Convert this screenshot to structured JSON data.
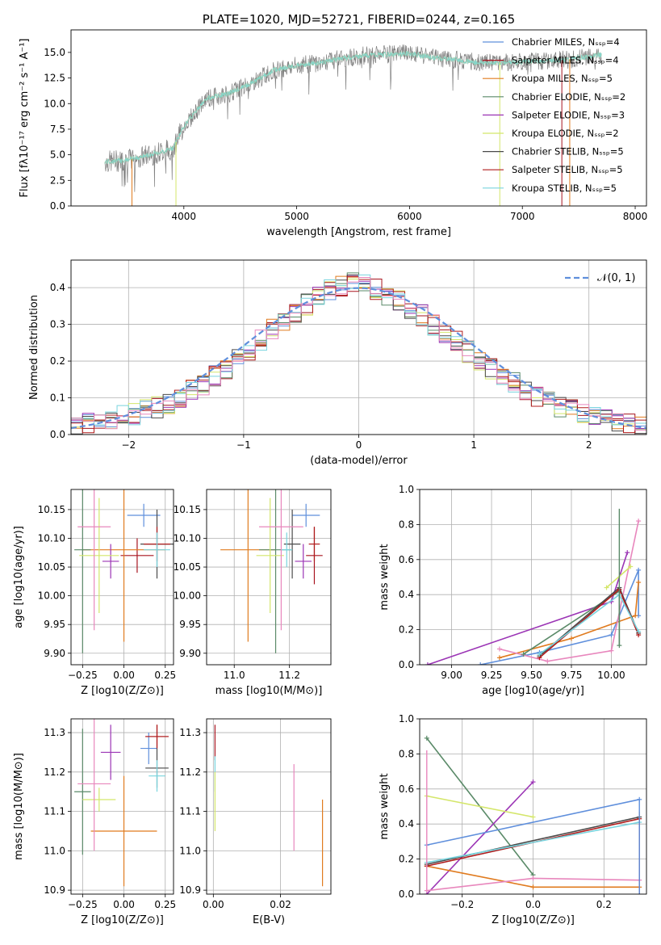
{
  "colors": {
    "chabrier_miles": "#5f8fdc",
    "salpeter_miles": "#a8141f",
    "kroupa_miles": "#e07b1f",
    "chabrier_elodie": "#5a8a68",
    "salpeter_elodie": "#9b34b5",
    "kroupa_elodie": "#d4e66a",
    "chabrier_stelib": "#4a4a4a",
    "salpeter_stelib": "#b01c1c",
    "kroupa_stelib": "#78d4de",
    "data": "#808080",
    "normal": "#5f8fdc",
    "pink": "#e887bd",
    "grid": "#b0b0b0"
  },
  "chart_data": [
    {
      "type": "line",
      "title": "PLATE=1020, MJD=52721, FIBERID=0244, z=0.165",
      "xlabel": "wavelength [Angstrom, rest frame]",
      "ylabel": "Flux [fλ10⁻¹⁷ erg cm⁻² s⁻¹ A⁻¹]",
      "xlim": [
        3000,
        8100
      ],
      "ylim": [
        0,
        17.2
      ],
      "xticks": [
        "4000",
        "5000",
        "6000",
        "7000",
        "8000"
      ],
      "yticks": [
        "0.0",
        "2.5",
        "5.0",
        "7.5",
        "10.0",
        "12.5",
        "15.0"
      ],
      "legend": [
        "Chabrier MILES, Nₛₛₚ=4",
        "Salpeter MILES, Nₛₛₚ=4",
        "Kroupa MILES, Nₛₛₚ=5",
        "Chabrier ELODIE, Nₛₛₚ=2",
        "Salpeter ELODIE, Nₛₛₚ=3",
        "Kroupa ELODIE, Nₛₛₚ=2",
        "Chabrier STELIB, Nₛₛₚ=5",
        "Salpeter STELIB, Nₛₛₚ=5",
        "Kroupa STELIB, Nₛₛₚ=5"
      ],
      "legend_placement": "bottom-right",
      "continuum_x": [
        3300,
        3500,
        3700,
        3900,
        4000,
        4200,
        4400,
        4600,
        4800,
        5000,
        5200,
        5400,
        5600,
        5800,
        6000,
        6200,
        6400,
        6600,
        6800,
        7000,
        7200,
        7400,
        7600,
        7700
      ],
      "continuum_y": [
        4.3,
        4.5,
        5.0,
        5.6,
        7.8,
        10.5,
        11.0,
        12.0,
        13.3,
        13.7,
        14.0,
        14.4,
        14.7,
        14.8,
        14.9,
        14.5,
        14.3,
        14.0,
        14.0,
        14.1,
        14.2,
        14.3,
        14.6,
        14.8
      ]
    },
    {
      "type": "line",
      "xlabel": "(data-model)/error",
      "ylabel": "Normed distribution",
      "xlim": [
        -2.5,
        2.5
      ],
      "ylim": [
        0,
        0.475
      ],
      "xticks": [
        "−2",
        "−1",
        "0",
        "1",
        "2"
      ],
      "yticks": [
        "0.0",
        "0.1",
        "0.2",
        "0.3",
        "0.4"
      ],
      "legend": [
        "𝒩(0, 1)"
      ],
      "legend_placement": "top-right",
      "bin_width": 0.1,
      "histograms": [
        {
          "x": [
            -2.5,
            -2.4,
            -2.3,
            -2.2,
            -2.1,
            -2.0,
            -1.9,
            -1.8,
            -1.7,
            -1.6,
            -1.5,
            -1.4,
            -1.3,
            -1.2,
            -1.1,
            -1.0,
            -0.9,
            -0.8,
            -0.7,
            -0.6,
            -0.5,
            -0.4,
            -0.3,
            -0.2,
            -0.1,
            0.0,
            0.1,
            0.2,
            0.3,
            0.4,
            0.5,
            0.6,
            0.7,
            0.8,
            0.9,
            1.0,
            1.1,
            1.2,
            1.3,
            1.4,
            1.5,
            1.6,
            1.7,
            1.8,
            1.9,
            2.0,
            2.1,
            2.2,
            2.3,
            2.4
          ],
          "y": [
            0.025,
            0.03,
            0.035,
            0.045,
            0.05,
            0.055,
            0.065,
            0.075,
            0.085,
            0.1,
            0.12,
            0.135,
            0.16,
            0.18,
            0.205,
            0.23,
            0.255,
            0.285,
            0.31,
            0.335,
            0.355,
            0.375,
            0.395,
            0.405,
            0.415,
            0.41,
            0.395,
            0.38,
            0.365,
            0.345,
            0.325,
            0.3,
            0.28,
            0.255,
            0.225,
            0.205,
            0.18,
            0.16,
            0.14,
            0.12,
            0.105,
            0.09,
            0.075,
            0.065,
            0.055,
            0.045,
            0.04,
            0.035,
            0.03,
            0.025
          ]
        }
      ],
      "normal_curve": {
        "mean": 0,
        "sigma": 1
      }
    },
    {
      "type": "scatter",
      "xlabel": "Z [log10(Z/Z⊙)]",
      "ylabel": "age  [log10(age/yr)]",
      "xlim": [
        -0.32,
        0.3
      ],
      "ylim": [
        9.88,
        10.185
      ],
      "xticks": [
        "−0.25",
        "0.00",
        "0.25"
      ],
      "yticks": [
        "9.90",
        "9.95",
        "10.00",
        "10.05",
        "10.10",
        "10.15"
      ],
      "points": [
        {
          "x": 0.12,
          "y": 10.14,
          "xerr": 0.1,
          "yerr": 0.02,
          "color": "chabrier_miles"
        },
        {
          "x": 0.08,
          "y": 10.07,
          "xerr": 0.1,
          "yerr": 0.03,
          "color": "salpeter_miles"
        },
        {
          "x": 0.0,
          "y": 10.08,
          "xerr": 0.25,
          "yerr": 0.16,
          "color": "kroupa_miles"
        },
        {
          "x": -0.25,
          "y": 10.08,
          "xerr": 0.05,
          "yerr": 0.18,
          "color": "chabrier_elodie"
        },
        {
          "x": -0.08,
          "y": 10.06,
          "xerr": 0.05,
          "yerr": 0.03,
          "color": "salpeter_elodie"
        },
        {
          "x": -0.15,
          "y": 10.07,
          "xerr": 0.12,
          "yerr": 0.1,
          "color": "kroupa_elodie"
        },
        {
          "x": 0.2,
          "y": 10.09,
          "xerr": 0.1,
          "yerr": 0.06,
          "color": "chabrier_stelib"
        },
        {
          "x": 0.2,
          "y": 10.09,
          "xerr": 0.08,
          "yerr": 0.03,
          "color": "salpeter_stelib"
        },
        {
          "x": 0.2,
          "y": 10.08,
          "xerr": 0.08,
          "yerr": 0.03,
          "color": "kroupa_stelib"
        },
        {
          "x": -0.18,
          "y": 10.12,
          "xerr": 0.1,
          "yerr": 0.18,
          "color": "pink"
        }
      ]
    },
    {
      "type": "scatter",
      "xlabel": "mass [log10(M/M⊙)]",
      "xlim": [
        10.9,
        11.35
      ],
      "ylim": [
        9.88,
        10.185
      ],
      "xticks": [
        "11.0",
        "11.2"
      ],
      "yticks": [
        "9.90",
        "9.95",
        "10.00",
        "10.05",
        "10.10",
        "10.15"
      ],
      "points": [
        {
          "x": 11.26,
          "y": 10.14,
          "xerr": 0.05,
          "yerr": 0.02,
          "color": "chabrier_miles"
        },
        {
          "x": 11.29,
          "y": 10.07,
          "xerr": 0.03,
          "yerr": 0.05,
          "color": "salpeter_miles"
        },
        {
          "x": 11.05,
          "y": 10.08,
          "xerr": 0.1,
          "yerr": 0.16,
          "color": "kroupa_miles"
        },
        {
          "x": 11.15,
          "y": 10.08,
          "xerr": 0.06,
          "yerr": 0.18,
          "color": "chabrier_elodie"
        },
        {
          "x": 11.25,
          "y": 10.06,
          "xerr": 0.03,
          "yerr": 0.03,
          "color": "salpeter_elodie"
        },
        {
          "x": 11.13,
          "y": 10.07,
          "xerr": 0.05,
          "yerr": 0.1,
          "color": "kroupa_elodie"
        },
        {
          "x": 11.21,
          "y": 10.09,
          "xerr": 0.03,
          "yerr": 0.06,
          "color": "chabrier_stelib"
        },
        {
          "x": 11.29,
          "y": 10.09,
          "xerr": 0.02,
          "yerr": 0.03,
          "color": "salpeter_stelib"
        },
        {
          "x": 11.19,
          "y": 10.08,
          "xerr": 0.02,
          "yerr": 0.03,
          "color": "kroupa_stelib"
        },
        {
          "x": 11.17,
          "y": 10.12,
          "xerr": 0.08,
          "yerr": 0.18,
          "color": "pink"
        }
      ]
    },
    {
      "type": "line",
      "xlabel": "age  [log10(age/yr)]",
      "ylabel": "mass weight",
      "xlim": [
        8.8,
        10.22
      ],
      "ylim": [
        0,
        1
      ],
      "xticks": [
        "9.00",
        "9.25",
        "9.50",
        "9.75",
        "10.00"
      ],
      "yticks": [
        "0.0",
        "0.2",
        "0.4",
        "0.6",
        "0.8",
        "1.0"
      ],
      "series": [
        {
          "color": "salpeter_elodie",
          "x": [
            8.85,
            10.0,
            10.1
          ],
          "y": [
            0.0,
            0.36,
            0.64
          ]
        },
        {
          "color": "chabrier_miles",
          "x": [
            9.18,
            9.55,
            10.0,
            10.17,
            10.17
          ],
          "y": [
            0.0,
            0.07,
            0.17,
            0.54,
            0.28
          ]
        },
        {
          "color": "kroupa_miles",
          "x": [
            9.3,
            9.75,
            10.15,
            10.17
          ],
          "y": [
            0.04,
            0.15,
            0.28,
            0.47
          ]
        },
        {
          "color": "pink",
          "x": [
            9.3,
            9.6,
            10.0,
            10.17
          ],
          "y": [
            0.09,
            0.02,
            0.08,
            0.82
          ]
        },
        {
          "color": "chabrier_elodie",
          "x": [
            9.45,
            10.05,
            10.05
          ],
          "y": [
            0.06,
            0.42,
            0.11
          ]
        },
        {
          "color": "kroupa_elodie",
          "x": [
            9.97,
            10.12
          ],
          "y": [
            0.44,
            0.56
          ]
        },
        {
          "color": "chabrier_stelib",
          "x": [
            9.55,
            10.05,
            10.17
          ],
          "y": [
            0.05,
            0.44,
            0.18
          ]
        },
        {
          "color": "salpeter_stelib",
          "x": [
            9.55,
            10.05,
            10.17
          ],
          "y": [
            0.04,
            0.43,
            0.17
          ]
        },
        {
          "color": "kroupa_stelib",
          "x": [
            9.55,
            10.05,
            10.17
          ],
          "y": [
            0.06,
            0.4,
            0.19
          ]
        }
      ],
      "vlines": [
        {
          "color": "chabrier_elodie",
          "x": 10.05,
          "y": [
            0.11,
            0.89
          ]
        }
      ]
    },
    {
      "type": "scatter",
      "xlabel": "Z [log10(Z/Z⊙)]",
      "ylabel": "mass [log10(M/M⊙)]",
      "xlim": [
        -0.32,
        0.3
      ],
      "ylim": [
        10.89,
        11.335
      ],
      "xticks": [
        "−0.25",
        "0.00",
        "0.25"
      ],
      "yticks": [
        "10.9",
        "11.0",
        "11.1",
        "11.2",
        "11.3"
      ],
      "points": [
        {
          "x": 0.15,
          "y": 11.26,
          "xerr": 0.05,
          "yerr": 0.04,
          "color": "chabrier_miles"
        },
        {
          "x": 0.2,
          "y": 11.29,
          "xerr": 0.07,
          "yerr": 0.03,
          "color": "salpeter_miles"
        },
        {
          "x": 0.0,
          "y": 11.05,
          "xerr": 0.2,
          "yerr": 0.14,
          "color": "kroupa_miles"
        },
        {
          "x": -0.25,
          "y": 11.15,
          "xerr": 0.05,
          "yerr": 0.16,
          "color": "chabrier_elodie"
        },
        {
          "x": -0.08,
          "y": 11.25,
          "xerr": 0.06,
          "yerr": 0.07,
          "color": "salpeter_elodie"
        },
        {
          "x": -0.15,
          "y": 11.13,
          "xerr": 0.1,
          "yerr": 0.03,
          "color": "kroupa_elodie"
        },
        {
          "x": 0.2,
          "y": 11.21,
          "xerr": 0.07,
          "yerr": 0.05,
          "color": "chabrier_stelib"
        },
        {
          "x": 0.2,
          "y": 11.29,
          "xerr": 0.07,
          "yerr": 0.03,
          "color": "salpeter_stelib"
        },
        {
          "x": 0.2,
          "y": 11.19,
          "xerr": 0.05,
          "yerr": 0.04,
          "color": "kroupa_stelib"
        },
        {
          "x": -0.18,
          "y": 11.17,
          "xerr": 0.1,
          "yerr": 0.17,
          "color": "pink"
        }
      ]
    },
    {
      "type": "scatter",
      "xlabel": "E(B-V)",
      "xlim": [
        -0.002,
        0.035
      ],
      "ylim": [
        10.89,
        11.335
      ],
      "xticks": [
        "0.00",
        "0.02"
      ],
      "yticks": [
        "10.9",
        "11.0",
        "11.1",
        "11.2",
        "11.3"
      ],
      "vlines": [
        {
          "color": "salpeter_miles",
          "x": 0.0005,
          "y": [
            11.23,
            11.32
          ]
        },
        {
          "color": "kroupa_stelib",
          "x": 0.0005,
          "y": [
            11.15,
            11.24
          ]
        },
        {
          "color": "kroupa_elodie",
          "x": 0.0005,
          "y": [
            11.05,
            11.2
          ]
        },
        {
          "color": "pink",
          "x": 0.024,
          "y": [
            11.0,
            11.22
          ]
        },
        {
          "color": "kroupa_miles",
          "x": 0.0325,
          "y": [
            10.91,
            11.13
          ]
        }
      ]
    },
    {
      "type": "line",
      "xlabel": "Z [log10(Z/Z⊙)]",
      "ylabel": "mass weight",
      "xlim": [
        -0.32,
        0.32
      ],
      "ylim": [
        0,
        1
      ],
      "xticks": [
        "−0.2",
        "0.0",
        "0.2"
      ],
      "yticks": [
        "0.0",
        "0.2",
        "0.4",
        "0.6",
        "0.8",
        "1.0"
      ],
      "series": [
        {
          "color": "chabrier_elodie",
          "x": [
            -0.3,
            0.0
          ],
          "y": [
            0.89,
            0.11
          ]
        },
        {
          "color": "salpeter_elodie",
          "x": [
            -0.3,
            0.0
          ],
          "y": [
            0.0,
            0.64
          ]
        },
        {
          "color": "kroupa_elodie",
          "x": [
            -0.3,
            0.0
          ],
          "y": [
            0.56,
            0.44
          ]
        },
        {
          "color": "chabrier_miles",
          "x": [
            -0.3,
            0.3
          ],
          "y": [
            0.28,
            0.54
          ]
        },
        {
          "color": "kroupa_miles",
          "x": [
            -0.3,
            0.0,
            0.3
          ],
          "y": [
            0.16,
            0.04,
            0.04
          ]
        },
        {
          "color": "pink",
          "x": [
            -0.3,
            0.0,
            0.3
          ],
          "y": [
            0.02,
            0.09,
            0.08
          ]
        },
        {
          "color": "chabrier_stelib",
          "x": [
            -0.3,
            0.3
          ],
          "y": [
            0.17,
            0.44
          ]
        },
        {
          "color": "salpeter_stelib",
          "x": [
            -0.3,
            0.3
          ],
          "y": [
            0.16,
            0.43
          ]
        },
        {
          "color": "kroupa_stelib",
          "x": [
            -0.3,
            0.3
          ],
          "y": [
            0.18,
            0.41
          ]
        }
      ],
      "vlines": [
        {
          "color": "pink",
          "x": -0.3,
          "y": [
            0.02,
            0.82
          ]
        },
        {
          "color": "kroupa_miles",
          "x": 0.3,
          "y": [
            0.0,
            0.47
          ]
        },
        {
          "color": "salpeter_miles",
          "x": 0.3,
          "y": [
            0.0,
            0.43
          ]
        },
        {
          "color": "chabrier_miles",
          "x": 0.3,
          "y": [
            0.0,
            0.54
          ]
        }
      ]
    }
  ]
}
